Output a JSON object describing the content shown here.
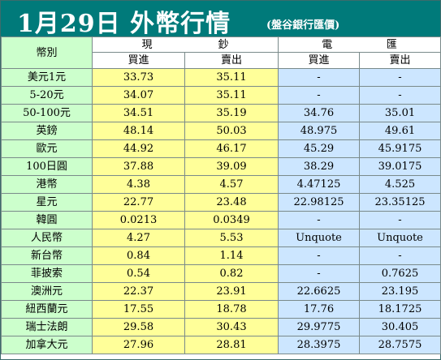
{
  "header": {
    "title": "1月29日 外幣行情",
    "source": "(盤谷銀行匯價)"
  },
  "table": {
    "corner_label": "幣別",
    "groups": [
      {
        "chars": [
          "現",
          "鈔"
        ]
      },
      {
        "chars": [
          "電",
          "匯"
        ]
      }
    ],
    "subheaders": [
      "買進",
      "賣出",
      "買進",
      "賣出"
    ],
    "rows": [
      {
        "currency": "美元1元",
        "cash_buy": "33.73",
        "cash_sell": "35.11",
        "wire_buy": "-",
        "wire_sell": "-"
      },
      {
        "currency": "5-20元",
        "cash_buy": "34.07",
        "cash_sell": "35.11",
        "wire_buy": "-",
        "wire_sell": "-"
      },
      {
        "currency": "50-100元",
        "cash_buy": "34.51",
        "cash_sell": "35.19",
        "wire_buy": "34.76",
        "wire_sell": "35.01"
      },
      {
        "currency": "英鎊",
        "cash_buy": "48.14",
        "cash_sell": "50.03",
        "wire_buy": "48.975",
        "wire_sell": "49.61"
      },
      {
        "currency": "歐元",
        "cash_buy": "44.92",
        "cash_sell": "46.17",
        "wire_buy": "45.29",
        "wire_sell": "45.9175"
      },
      {
        "currency": "100日圓",
        "cash_buy": "37.88",
        "cash_sell": "39.09",
        "wire_buy": "38.29",
        "wire_sell": "39.0175"
      },
      {
        "currency": "港幣",
        "cash_buy": "4.38",
        "cash_sell": "4.57",
        "wire_buy": "4.47125",
        "wire_sell": "4.525"
      },
      {
        "currency": "星元",
        "cash_buy": "22.77",
        "cash_sell": "23.48",
        "wire_buy": "22.98125",
        "wire_sell": "23.35125"
      },
      {
        "currency": "韓圓",
        "cash_buy": "0.0213",
        "cash_sell": "0.0349",
        "wire_buy": "-",
        "wire_sell": "-"
      },
      {
        "currency": "人民幣",
        "cash_buy": "4.27",
        "cash_sell": "5.53",
        "wire_buy": "Unquote",
        "wire_sell": "Unquote"
      },
      {
        "currency": "新台幣",
        "cash_buy": "0.84",
        "cash_sell": "1.14",
        "wire_buy": "-",
        "wire_sell": "-"
      },
      {
        "currency": "菲披索",
        "cash_buy": "0.54",
        "cash_sell": "0.82",
        "wire_buy": "-",
        "wire_sell": "0.7625"
      },
      {
        "currency": "澳洲元",
        "cash_buy": "22.37",
        "cash_sell": "23.91",
        "wire_buy": "22.6625",
        "wire_sell": "23.195"
      },
      {
        "currency": "紐西蘭元",
        "cash_buy": "17.55",
        "cash_sell": "18.78",
        "wire_buy": "17.76",
        "wire_sell": "18.1725"
      },
      {
        "currency": "瑞士法朗",
        "cash_buy": "29.58",
        "cash_sell": "30.43",
        "wire_buy": "29.9775",
        "wire_sell": "30.405"
      },
      {
        "currency": "加拿大元",
        "cash_buy": "27.96",
        "cash_sell": "28.81",
        "wire_buy": "28.3975",
        "wire_sell": "28.7575"
      }
    ]
  },
  "colors": {
    "title_bg": "#007a7a",
    "label_bg": "#ccffcc",
    "cash_bg": "#ffff99",
    "wire_bg": "#cce6ff"
  }
}
